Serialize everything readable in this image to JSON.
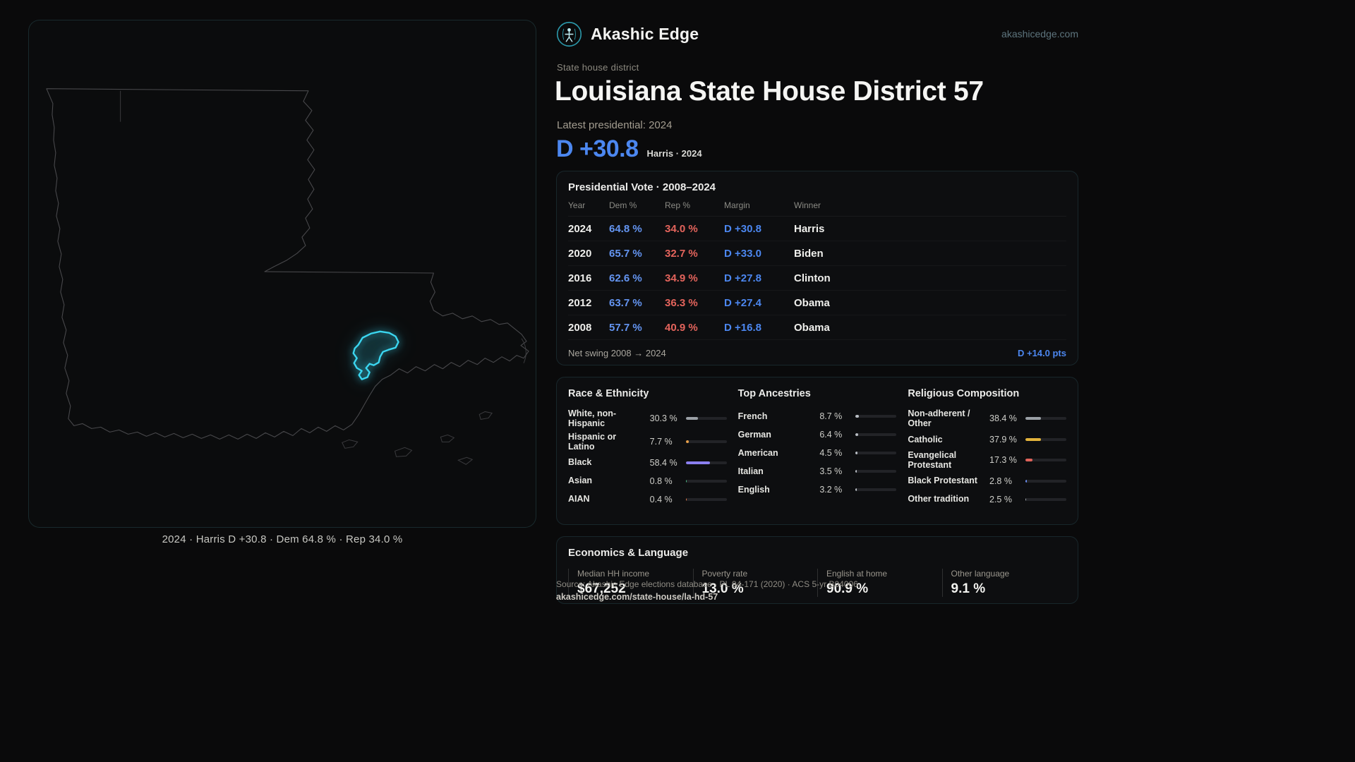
{
  "header": {
    "brand": "Akashic Edge",
    "site": "akashicedge.com"
  },
  "hero": {
    "kicker": "State house district",
    "title": "Louisiana State House District 57",
    "latest": "Latest presidential: 2024",
    "margin_value": "D +30.8",
    "margin_note": "Harris · 2024"
  },
  "map": {
    "caption": "2024 · Harris D +30.8 · Dem 64.8 % · Rep 34.0 %"
  },
  "vote_card": {
    "title": "Presidential Vote · 2008–2024",
    "columns": [
      "Year",
      "Dem %",
      "Rep %",
      "Margin",
      "Winner"
    ],
    "rows": [
      [
        "2024",
        "64.8 %",
        "34.0 %",
        "D +30.8",
        "Harris"
      ],
      [
        "2020",
        "65.7 %",
        "32.7 %",
        "D +33.0",
        "Biden"
      ],
      [
        "2016",
        "62.6 %",
        "34.9 %",
        "D +27.8",
        "Clinton"
      ],
      [
        "2012",
        "63.7 %",
        "36.3 %",
        "D +27.4",
        "Obama"
      ],
      [
        "2008",
        "57.7 %",
        "40.9 %",
        "D +16.8",
        "Obama"
      ]
    ],
    "net_swing_label": "Net swing 2008 → 2024",
    "net_swing_value": "D +14.0 pts"
  },
  "race": {
    "title": "Race & Ethnicity",
    "items": [
      {
        "label": "White, non-Hispanic",
        "value": "30.3 %",
        "pct": 30.3,
        "color": "#9aa0a6"
      },
      {
        "label": "Hispanic or Latino",
        "value": "7.7 %",
        "pct": 7.7,
        "color": "#e8a04a"
      },
      {
        "label": "Black",
        "value": "58.4 %",
        "pct": 58.4,
        "color": "#8b7ff0"
      },
      {
        "label": "Asian",
        "value": "0.8 %",
        "pct": 0.8,
        "color": "#4ec08a"
      },
      {
        "label": "AIAN",
        "value": "0.4 %",
        "pct": 0.4,
        "color": "#e0784a"
      }
    ]
  },
  "ancestries": {
    "title": "Top Ancestries",
    "items": [
      {
        "label": "French",
        "value": "8.7 %",
        "pct": 8.7,
        "color": "#b9bec4"
      },
      {
        "label": "German",
        "value": "6.4 %",
        "pct": 6.4,
        "color": "#b9bec4"
      },
      {
        "label": "American",
        "value": "4.5 %",
        "pct": 4.5,
        "color": "#b9bec4"
      },
      {
        "label": "Italian",
        "value": "3.5 %",
        "pct": 3.5,
        "color": "#b9bec4"
      },
      {
        "label": "English",
        "value": "3.2 %",
        "pct": 3.2,
        "color": "#b9bec4"
      }
    ]
  },
  "religion": {
    "title": "Religious Composition",
    "items": [
      {
        "label": "Non-adherent / Other",
        "value": "38.4 %",
        "pct": 38.4,
        "color": "#9aa0a6"
      },
      {
        "label": "Catholic",
        "value": "37.9 %",
        "pct": 37.9,
        "color": "#e2b33c"
      },
      {
        "label": "Evangelical Protestant",
        "value": "17.3 %",
        "pct": 17.3,
        "color": "#e0635a"
      },
      {
        "label": "Black Protestant",
        "value": "2.8 %",
        "pct": 2.8,
        "color": "#6a8df0"
      },
      {
        "label": "Other tradition",
        "value": "2.5 %",
        "pct": 2.5,
        "color": "#9aa0a6"
      }
    ]
  },
  "economics": {
    "title": "Economics & Language",
    "stats": [
      {
        "label": "Median HH income",
        "value": "$67,252"
      },
      {
        "label": "Poverty rate",
        "value": "13.0 %"
      },
      {
        "label": "English at home",
        "value": "90.9 %"
      },
      {
        "label": "Other language",
        "value": "9.1 %"
      }
    ]
  },
  "footer": {
    "source": "Source: Akashic Edge elections database · PL 94-171 (2020) · ACS 5-yr B04006",
    "permalink": "akashicedge.com/state-house/la-hd-57"
  },
  "chart_data": [
    {
      "type": "table",
      "title": "Presidential Vote · 2008–2024",
      "columns": [
        "Year",
        "Dem %",
        "Rep %",
        "Margin",
        "Winner"
      ],
      "rows": [
        [
          2024,
          64.8,
          34.0,
          "D +30.8",
          "Harris"
        ],
        [
          2020,
          65.7,
          32.7,
          "D +33.0",
          "Biden"
        ],
        [
          2016,
          62.6,
          34.9,
          "D +27.8",
          "Clinton"
        ],
        [
          2012,
          63.7,
          36.3,
          "D +27.4",
          "Obama"
        ],
        [
          2008,
          57.7,
          40.9,
          "D +16.8",
          "Obama"
        ]
      ],
      "net_swing_2008_2024": "D +14.0 pts"
    },
    {
      "type": "bar",
      "title": "Race & Ethnicity",
      "categories": [
        "White, non-Hispanic",
        "Hispanic or Latino",
        "Black",
        "Asian",
        "AIAN"
      ],
      "values": [
        30.3,
        7.7,
        58.4,
        0.8,
        0.4
      ],
      "xlim": [
        0,
        100
      ],
      "unit": "%"
    },
    {
      "type": "bar",
      "title": "Top Ancestries",
      "categories": [
        "French",
        "German",
        "American",
        "Italian",
        "English"
      ],
      "values": [
        8.7,
        6.4,
        4.5,
        3.5,
        3.2
      ],
      "xlim": [
        0,
        100
      ],
      "unit": "%"
    },
    {
      "type": "bar",
      "title": "Religious Composition",
      "categories": [
        "Non-adherent / Other",
        "Catholic",
        "Evangelical Protestant",
        "Black Protestant",
        "Other tradition"
      ],
      "values": [
        38.4,
        37.9,
        17.3,
        2.8,
        2.5
      ],
      "xlim": [
        0,
        100
      ],
      "unit": "%"
    },
    {
      "type": "table",
      "title": "Economics & Language",
      "columns": [
        "Median HH income",
        "Poverty rate",
        "English at home",
        "Other language"
      ],
      "rows": [
        [
          "$67,252",
          "13.0 %",
          "90.9 %",
          "9.1 %"
        ]
      ]
    }
  ]
}
